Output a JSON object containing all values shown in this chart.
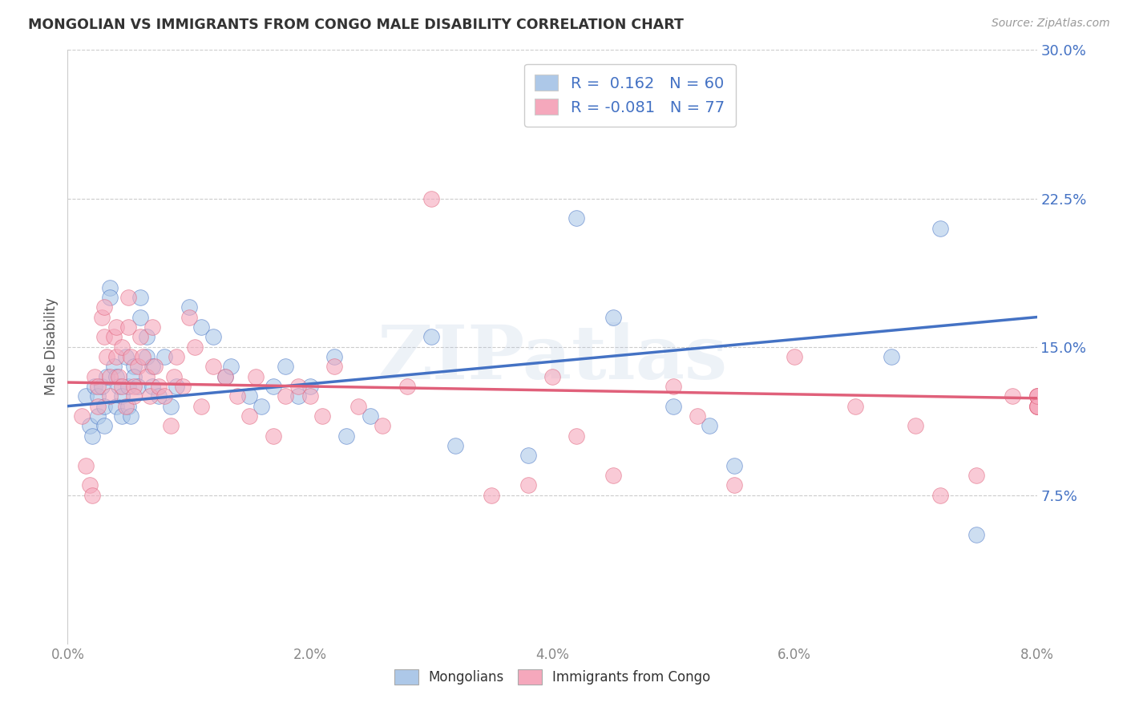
{
  "title": "MONGOLIAN VS IMMIGRANTS FROM CONGO MALE DISABILITY CORRELATION CHART",
  "source": "Source: ZipAtlas.com",
  "ylabel": "Male Disability",
  "xlim": [
    0.0,
    8.0
  ],
  "ylim": [
    0.0,
    30.0
  ],
  "yticks": [
    7.5,
    15.0,
    22.5,
    30.0
  ],
  "xticks": [
    0.0,
    2.0,
    4.0,
    6.0,
    8.0
  ],
  "watermark": "ZIPatlas",
  "mongolian_color": "#adc8e8",
  "congo_color": "#f5a8bc",
  "mongolian_line_color": "#4472c4",
  "congo_line_color": "#e0607a",
  "background_color": "#ffffff",
  "mongolian_r": 0.162,
  "mongolian_n": 60,
  "congo_r": -0.081,
  "congo_n": 77,
  "mongo_line_x0": 0.0,
  "mongo_line_y0": 12.0,
  "mongo_line_x1": 8.0,
  "mongo_line_y1": 16.5,
  "congo_line_x0": 0.0,
  "congo_line_y0": 13.2,
  "congo_line_x1": 8.0,
  "congo_line_y1": 12.4,
  "mongolian_x": [
    0.15,
    0.18,
    0.2,
    0.22,
    0.25,
    0.25,
    0.28,
    0.3,
    0.3,
    0.32,
    0.35,
    0.35,
    0.38,
    0.4,
    0.4,
    0.42,
    0.45,
    0.45,
    0.48,
    0.5,
    0.5,
    0.52,
    0.55,
    0.55,
    0.58,
    0.6,
    0.6,
    0.65,
    0.65,
    0.7,
    0.7,
    0.75,
    0.8,
    0.85,
    0.9,
    1.0,
    1.1,
    1.2,
    1.3,
    1.35,
    1.5,
    1.6,
    1.7,
    1.8,
    1.9,
    2.0,
    2.2,
    2.3,
    2.5,
    3.0,
    3.2,
    3.8,
    4.2,
    4.5,
    5.0,
    5.3,
    5.5,
    6.8,
    7.2,
    7.5
  ],
  "mongolian_y": [
    12.5,
    11.0,
    10.5,
    13.0,
    11.5,
    12.5,
    13.0,
    12.0,
    11.0,
    13.5,
    18.0,
    17.5,
    14.0,
    13.5,
    12.0,
    13.0,
    12.5,
    11.5,
    14.5,
    13.0,
    12.0,
    11.5,
    14.0,
    13.5,
    13.0,
    17.5,
    16.5,
    15.5,
    14.5,
    14.0,
    13.0,
    12.5,
    14.5,
    12.0,
    13.0,
    17.0,
    16.0,
    15.5,
    13.5,
    14.0,
    12.5,
    12.0,
    13.0,
    14.0,
    12.5,
    13.0,
    14.5,
    10.5,
    11.5,
    15.5,
    10.0,
    9.5,
    21.5,
    16.5,
    12.0,
    11.0,
    9.0,
    14.5,
    21.0,
    5.5
  ],
  "congo_x": [
    0.12,
    0.15,
    0.18,
    0.2,
    0.22,
    0.25,
    0.25,
    0.28,
    0.3,
    0.3,
    0.32,
    0.35,
    0.35,
    0.38,
    0.4,
    0.4,
    0.42,
    0.45,
    0.45,
    0.48,
    0.5,
    0.5,
    0.52,
    0.55,
    0.55,
    0.58,
    0.6,
    0.62,
    0.65,
    0.68,
    0.7,
    0.72,
    0.75,
    0.8,
    0.85,
    0.88,
    0.9,
    0.95,
    1.0,
    1.05,
    1.1,
    1.2,
    1.3,
    1.4,
    1.5,
    1.55,
    1.7,
    1.8,
    1.9,
    2.0,
    2.1,
    2.2,
    2.4,
    2.6,
    2.8,
    3.0,
    3.5,
    3.8,
    4.0,
    4.2,
    4.5,
    5.0,
    5.2,
    5.5,
    6.0,
    6.5,
    7.0,
    7.2,
    7.5,
    7.8,
    8.0,
    8.0,
    8.0,
    8.0,
    8.0,
    8.0,
    8.0
  ],
  "congo_y": [
    11.5,
    9.0,
    8.0,
    7.5,
    13.5,
    13.0,
    12.0,
    16.5,
    15.5,
    17.0,
    14.5,
    13.5,
    12.5,
    15.5,
    14.5,
    16.0,
    13.5,
    15.0,
    13.0,
    12.0,
    17.5,
    16.0,
    14.5,
    13.0,
    12.5,
    14.0,
    15.5,
    14.5,
    13.5,
    12.5,
    16.0,
    14.0,
    13.0,
    12.5,
    11.0,
    13.5,
    14.5,
    13.0,
    16.5,
    15.0,
    12.0,
    14.0,
    13.5,
    12.5,
    11.5,
    13.5,
    10.5,
    12.5,
    13.0,
    12.5,
    11.5,
    14.0,
    12.0,
    11.0,
    13.0,
    22.5,
    7.5,
    8.0,
    13.5,
    10.5,
    8.5,
    13.0,
    11.5,
    8.0,
    14.5,
    12.0,
    11.0,
    7.5,
    8.5,
    12.5,
    12.5,
    12.0,
    12.5,
    12.0,
    12.0,
    12.0,
    12.5
  ]
}
